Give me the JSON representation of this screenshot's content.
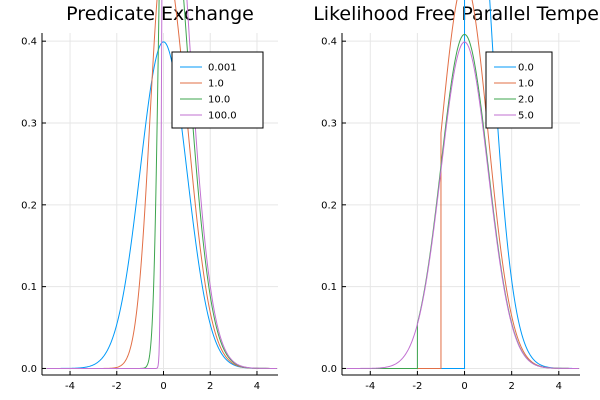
{
  "chart_data": [
    {
      "type": "line",
      "title": "Predicate Exchange",
      "xlabel": "",
      "ylabel": "",
      "xlim": [
        -5.2,
        4.9
      ],
      "ylim": [
        -0.008,
        0.41
      ],
      "xticks": [
        -4,
        -2,
        0,
        2,
        4
      ],
      "yticks": [
        0.0,
        0.1,
        0.2,
        0.3,
        0.4
      ],
      "xtick_labels": [
        "-4",
        "-2",
        "0",
        "2",
        "4"
      ],
      "ytick_labels": [
        "0.0",
        "0.1",
        "0.2",
        "0.3",
        "0.4"
      ],
      "grid": true,
      "legend_position": "top-right",
      "series": [
        {
          "name": "0.001",
          "color": "#009AF9",
          "kind": "smooth-cut",
          "alpha": 0.001,
          "x_range": [
            -5,
            4.85
          ]
        },
        {
          "name": "1.0",
          "color": "#E26F46",
          "kind": "smooth-cut",
          "alpha": 1.0,
          "x_range": [
            -5,
            4.85
          ]
        },
        {
          "name": "10.0",
          "color": "#3DA44E",
          "kind": "smooth-cut",
          "alpha": 10.0,
          "x_range": [
            -5,
            4.85
          ]
        },
        {
          "name": "100.0",
          "color": "#C271D2",
          "kind": "smooth-cut",
          "alpha": 100.0,
          "x_range": [
            -5,
            4.85
          ]
        }
      ]
    },
    {
      "type": "line",
      "title": "Likelihood Free Parallel Temper",
      "xlabel": "",
      "ylabel": "",
      "xlim": [
        -5.2,
        4.9
      ],
      "ylim": [
        -0.008,
        0.41
      ],
      "xticks": [
        -4,
        -2,
        0,
        2,
        4
      ],
      "yticks": [
        0.0,
        0.1,
        0.2,
        0.3,
        0.4
      ],
      "xtick_labels": [
        "-4",
        "-2",
        "0",
        "2",
        "4"
      ],
      "ytick_labels": [
        "0.0",
        "0.1",
        "0.2",
        "0.3",
        "0.4"
      ],
      "grid": true,
      "legend_position": "top-right",
      "series": [
        {
          "name": "0.0",
          "color": "#009AF9",
          "kind": "hard-cut",
          "cut": 0.0,
          "x_range": [
            -5,
            4.85
          ]
        },
        {
          "name": "1.0",
          "color": "#E26F46",
          "kind": "hard-cut",
          "cut": -1.0,
          "x_range": [
            -5,
            4.85
          ]
        },
        {
          "name": "2.0",
          "color": "#3DA44E",
          "kind": "hard-cut",
          "cut": -2.0,
          "x_range": [
            -5,
            4.85
          ]
        },
        {
          "name": "5.0",
          "color": "#C271D2",
          "kind": "hard-cut",
          "cut": -5.0,
          "x_range": [
            -5,
            4.85
          ]
        }
      ]
    }
  ]
}
